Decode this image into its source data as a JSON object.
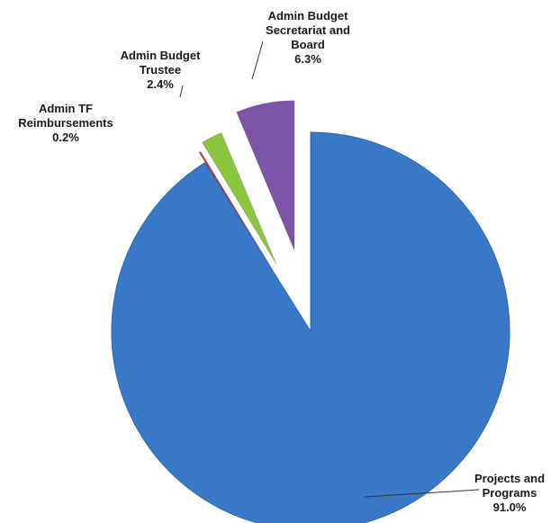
{
  "chart_data": {
    "type": "pie",
    "title": "",
    "exploded": true,
    "legend": "none",
    "slices": [
      {
        "name": "Projects and Programs",
        "label_lines": [
          "Projects and",
          "Programs"
        ],
        "pct_label": "91.0%",
        "value": 91.0,
        "color": "#3a78c8"
      },
      {
        "name": "Admin TF Reimbursements",
        "label_lines": [
          "Admin TF",
          "Reimbursements"
        ],
        "pct_label": "0.2%",
        "value": 0.2,
        "color": "#c0392b"
      },
      {
        "name": "Admin Budget Trustee",
        "label_lines": [
          "Admin Budget",
          "Trustee"
        ],
        "pct_label": "2.4%",
        "value": 2.4,
        "color": "#8cc63f"
      },
      {
        "name": "Admin Budget Secretariat and Board",
        "label_lines": [
          "Admin Budget",
          "Secretariat and",
          "Board"
        ],
        "pct_label": "6.3%",
        "value": 6.3,
        "color": "#7d55a8"
      }
    ]
  }
}
